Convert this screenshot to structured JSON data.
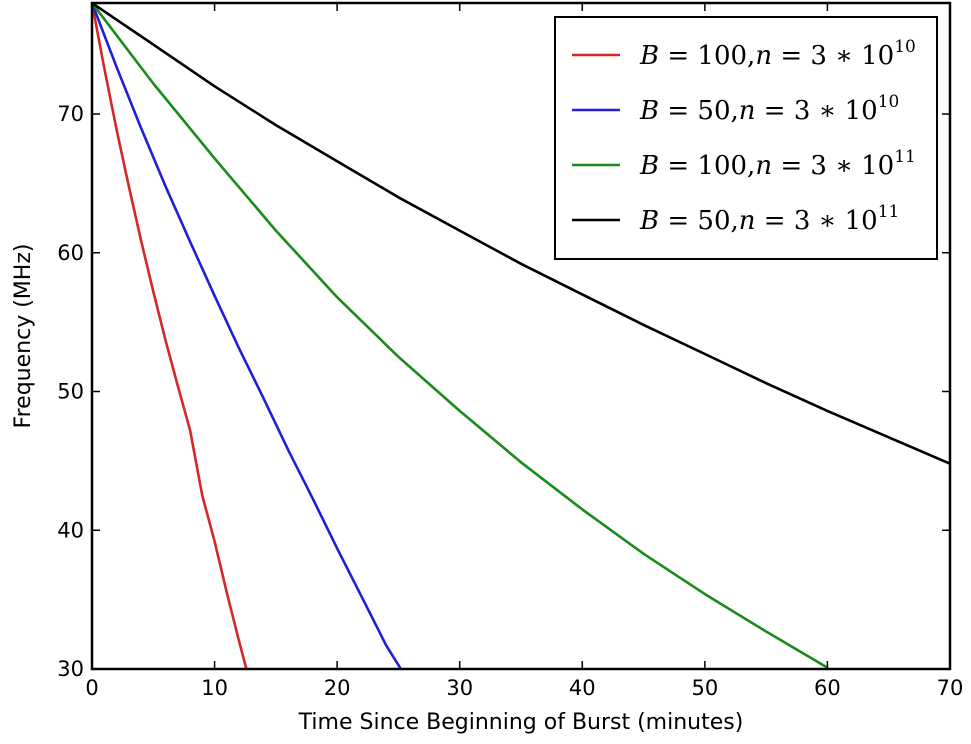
{
  "chart_data": {
    "type": "line",
    "xlabel": "Time Since Beginning of Burst (minutes)",
    "ylabel": "Frequency (MHz)",
    "xlim": [
      0,
      70
    ],
    "ylim": [
      30,
      78
    ],
    "xticks": [
      0,
      10,
      20,
      30,
      40,
      50,
      60,
      70
    ],
    "yticks": [
      30,
      40,
      50,
      60,
      70
    ],
    "grid": false,
    "legend_position": "top-right",
    "series": [
      {
        "name": "B = 100, n = 3 * 10^10",
        "legend": {
          "B": "100",
          "n_coef": "3",
          "n_base": "10",
          "n_exp": "10"
        },
        "color": "#d62728",
        "x": [
          0,
          1,
          2,
          3,
          4,
          5,
          6,
          7,
          8,
          9,
          10,
          11,
          12,
          12.6
        ],
        "y": [
          78,
          73.3,
          68.9,
          64.8,
          60.9,
          57.2,
          53.7,
          50.4,
          47.2,
          42.5,
          39.2,
          35.5,
          32.0,
          30
        ]
      },
      {
        "name": "B = 50, n = 3 * 10^10",
        "legend": {
          "B": "50",
          "n_coef": "3",
          "n_base": "10",
          "n_exp": "10"
        },
        "color": "#1f1fd6",
        "x": [
          0,
          2,
          4,
          6,
          8,
          10,
          12,
          14,
          16,
          18,
          20,
          22,
          24,
          25.2
        ],
        "y": [
          78,
          73.4,
          69.0,
          64.8,
          60.8,
          56.9,
          53.1,
          49.5,
          45.8,
          42.3,
          38.7,
          35.2,
          31.7,
          30
        ]
      },
      {
        "name": "B = 100, n = 3 * 10^11",
        "legend": {
          "B": "100",
          "n_coef": "3",
          "n_base": "10",
          "n_exp": "11"
        },
        "color": "#1a8a1a",
        "x": [
          0,
          5,
          10,
          15,
          20,
          25,
          30,
          35,
          40,
          45,
          50,
          55,
          60
        ],
        "y": [
          78,
          72.2,
          66.8,
          61.6,
          56.8,
          52.5,
          48.6,
          44.9,
          41.5,
          38.3,
          35.4,
          32.7,
          30.1
        ]
      },
      {
        "name": "B = 50, n = 3 * 10^11",
        "legend": {
          "B": "50",
          "n_coef": "3",
          "n_base": "10",
          "n_exp": "11"
        },
        "color": "#000000",
        "x": [
          0,
          5,
          10,
          15,
          20,
          25,
          30,
          35,
          40,
          45,
          50,
          55,
          60,
          65,
          70
        ],
        "y": [
          78,
          75.0,
          72.0,
          69.2,
          66.6,
          64.0,
          61.6,
          59.2,
          57.0,
          54.8,
          52.7,
          50.6,
          48.6,
          46.7,
          44.8
        ]
      }
    ]
  }
}
